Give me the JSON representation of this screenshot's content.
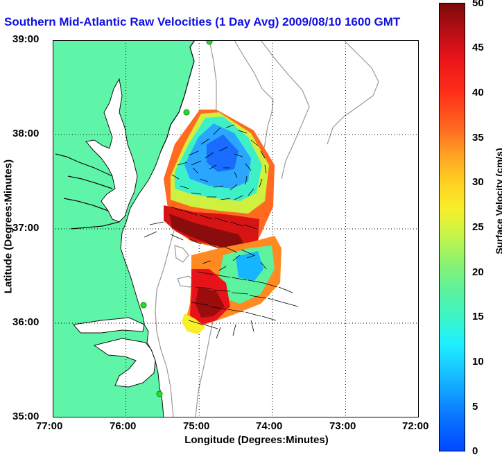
{
  "title": "Southern Mid-Atlantic Raw Velocities (1 Day Avg) 2009/08/10 1600 GMT",
  "xlabel": "Longitude (Degrees:Minutes)",
  "ylabel": "Latitude (Degrees:Minutes)",
  "x_ticks": [
    "77:00",
    "76:00",
    "75:00",
    "74:00",
    "73:00",
    "72:00"
  ],
  "y_ticks": [
    "39:00",
    "38:00",
    "37:00",
    "36:00",
    "35:00"
  ],
  "colorbar": {
    "label": "Surface Velocity (cm/s)",
    "ticks": [
      "50",
      "45",
      "40",
      "35",
      "30",
      "25",
      "20",
      "15",
      "10",
      "5",
      "0"
    ]
  },
  "colors": {
    "land": "#5ff5a8",
    "title": "#1010e0",
    "coast": "#000000"
  }
}
